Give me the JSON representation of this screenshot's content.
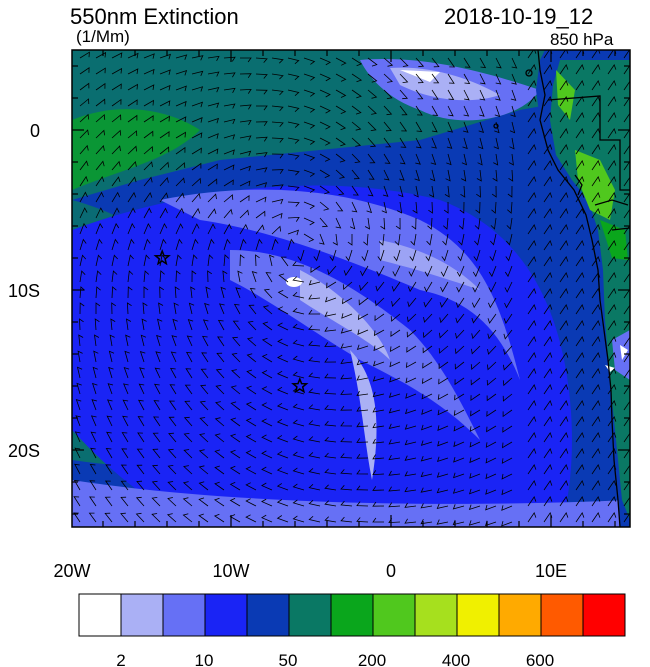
{
  "title": "550nm Extinction",
  "units": "(1/Mm)",
  "datetime": "2018-10-19_12",
  "level": "850 hPa",
  "x_ticks": [
    "20W",
    "10W",
    "0",
    "10E"
  ],
  "y_ticks": [
    "0",
    "10S",
    "20S"
  ],
  "colorbar": {
    "colors": [
      "#ffffff",
      "#aab0f5",
      "#6670f5",
      "#1a24f5",
      "#0a3ab4",
      "#0a7864",
      "#0aa61c",
      "#50c81e",
      "#a6e01e",
      "#f0f000",
      "#ffaa00",
      "#ff5a00",
      "#ff0000"
    ],
    "labels": [
      "2",
      "10",
      "50",
      "200",
      "400",
      "600"
    ]
  },
  "markers": [
    {
      "name": "star-marker-west",
      "lon": -14.3,
      "lat": -8.0
    },
    {
      "name": "star-marker-central",
      "lon": -5.7,
      "lat": -16.0
    }
  ]
}
